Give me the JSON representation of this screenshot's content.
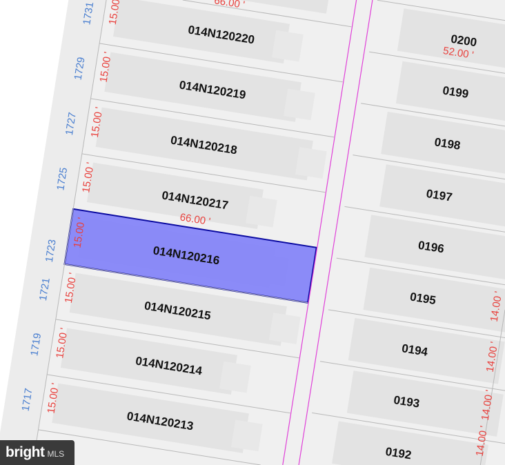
{
  "colors": {
    "background": "#f0f0f0",
    "building": "#e3e3e3",
    "lot_line": "#b8b8b8",
    "street_line": "#e040d8",
    "highlight_fill": "#8585f8",
    "highlight_stroke": "#0a0aa0",
    "address_text": "#4a7fd0",
    "dimension_text": "#e8403c"
  },
  "left_parcels": [
    {
      "id": "014N120220",
      "address": "1731",
      "frontage": "15.00",
      "highlighted": false
    },
    {
      "id": "014N120219",
      "address": "1729",
      "frontage": "15.00 '",
      "highlighted": false
    },
    {
      "id": "014N120218",
      "address": "1727",
      "frontage": "15.00 '",
      "highlighted": false
    },
    {
      "id": "014N120217",
      "address": "1725",
      "frontage": "15.00 '",
      "highlighted": false
    },
    {
      "id": "014N120216",
      "address": "1723",
      "frontage": "15.00 '",
      "highlighted": true
    },
    {
      "id": "014N120215",
      "address": "1721",
      "frontage": "15.00 '",
      "highlighted": false
    },
    {
      "id": "014N120214",
      "address": "1719",
      "frontage": "15.00 '",
      "highlighted": false
    },
    {
      "id": "014N120213",
      "address": "1717",
      "frontage": "15.00 '",
      "highlighted": false
    }
  ],
  "left_depth_labels": [
    "66.00 '",
    "66.00 '"
  ],
  "right_parcels": [
    {
      "id": "0200"
    },
    {
      "id": "0199"
    },
    {
      "id": "0198"
    },
    {
      "id": "0197"
    },
    {
      "id": "0196"
    },
    {
      "id": "0195"
    },
    {
      "id": "0194"
    },
    {
      "id": "0193"
    },
    {
      "id": "0192"
    }
  ],
  "right_depth_label": "52.00 '",
  "right_frontage_labels": [
    "14.00 '",
    "14.00 '",
    "14.00 '",
    "14.00 '"
  ],
  "logo": {
    "brand": "bright",
    "suffix": "MLS"
  }
}
